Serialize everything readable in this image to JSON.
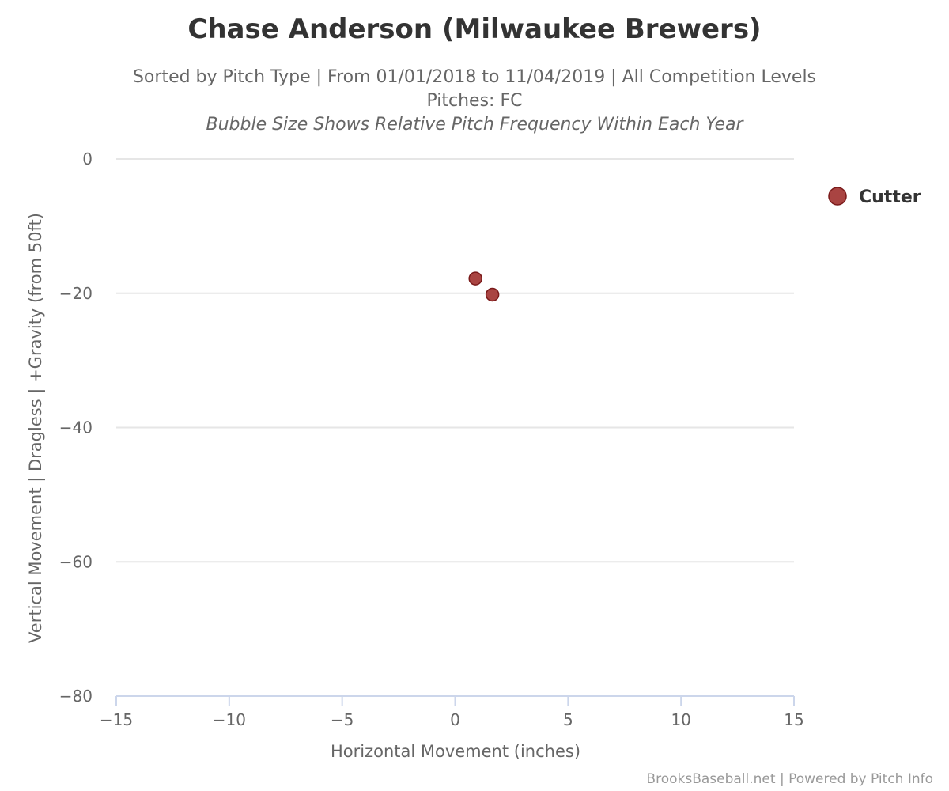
{
  "chart_data": {
    "type": "scatter",
    "title": "Chase Anderson (Milwaukee Brewers)",
    "subtitle_line1": "Sorted by Pitch Type | From 01/01/2018 to 11/04/2019 | All Competition Levels",
    "subtitle_line2": "Pitches: FC",
    "subtitle_line3": "Bubble Size Shows Relative Pitch Frequency Within Each Year",
    "xlabel": "Horizontal Movement (inches)",
    "ylabel": "Vertical Movement | Dragless | +Gravity (from 50ft)",
    "xlim": [
      -15,
      15
    ],
    "ylim": [
      -80,
      0
    ],
    "x_ticks": [
      "−15",
      "−10",
      "−5",
      "0",
      "5",
      "10",
      "15"
    ],
    "y_ticks": [
      "0",
      "−20",
      "−40",
      "−60",
      "−80"
    ],
    "grid": "horizontal",
    "legend": {
      "position": "top-right"
    },
    "series": [
      {
        "name": "Cutter",
        "color": "#a94442",
        "stroke": "#7a1a1a",
        "points": [
          {
            "x": 0.9,
            "y": -17.8
          },
          {
            "x": 1.65,
            "y": -20.2
          }
        ]
      }
    ],
    "credits": "BrooksBaseball.net | Powered by Pitch Info"
  }
}
